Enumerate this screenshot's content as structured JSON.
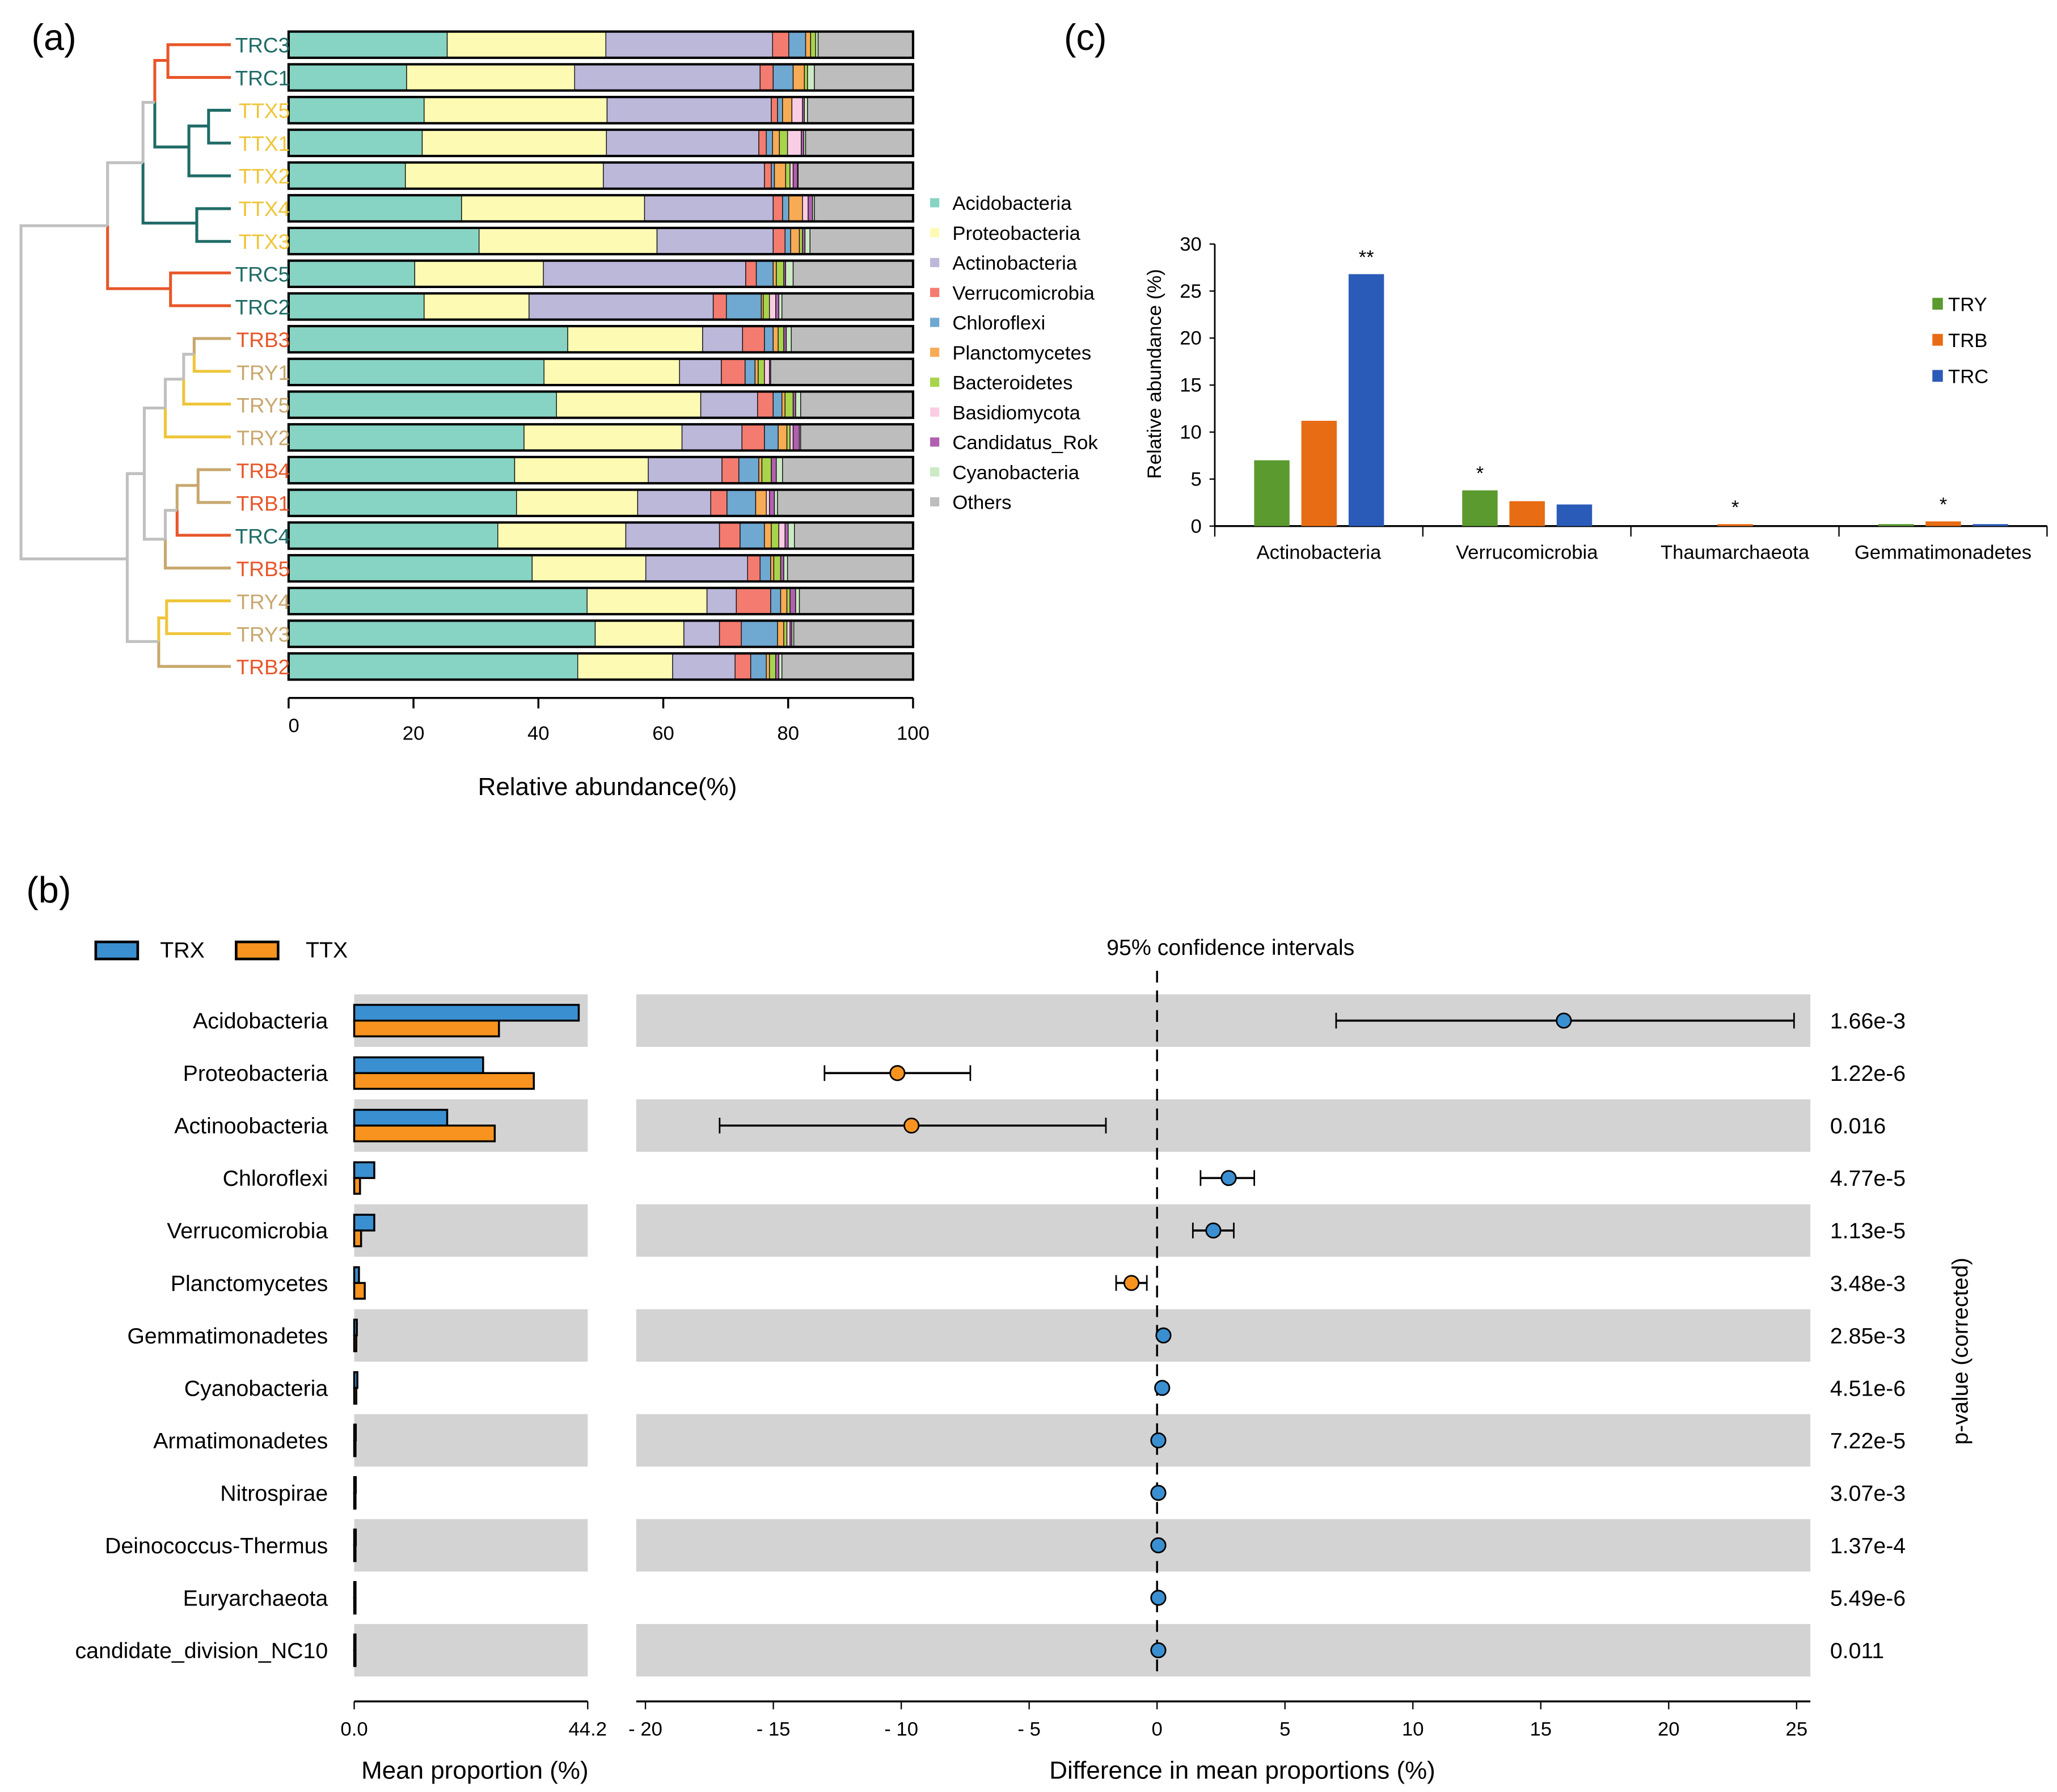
{
  "panel_labels": {
    "a": "(a)",
    "b": "(b)",
    "c": "(c)"
  },
  "chart_data": [
    {
      "panel": "a",
      "type": "bar",
      "orientation": "horizontal-stacked",
      "xlabel": "Relative abundance(%)",
      "xlim": [
        0,
        100
      ],
      "xticks": [
        "0",
        "20",
        "40",
        "60",
        "80",
        "100"
      ],
      "legend_position": "right",
      "categories": [
        "TRC3",
        "TRC1",
        "TTX5",
        "TTX1",
        "TTX2",
        "TTX4",
        "TTX3",
        "TRC5",
        "TRC2",
        "TRB3",
        "TRY1",
        "TRY5",
        "TRY2",
        "TRB4",
        "TRB1",
        "TRC4",
        "TRB5",
        "TRY4",
        "TRY3",
        "TRB2"
      ],
      "group_colors": {
        "TRC": "#1f6b66",
        "TTX": "#efc53a",
        "TRB": "#e8562a",
        "TRY": "#c8a86e"
      },
      "series": [
        {
          "name": "Acidobacteria",
          "color": "#87d3c4",
          "values": [
            25.4,
            18.9,
            21.7,
            21.4,
            18.7,
            27.7,
            30.5,
            20.2,
            21.7,
            44.7,
            40.9,
            42.9,
            37.7,
            36.2,
            36.5,
            33.5,
            39.0,
            47.8,
            49.1,
            46.3
          ]
        },
        {
          "name": "Proteobacteria",
          "color": "#fdfbb3",
          "values": [
            25.4,
            26.9,
            29.3,
            29.5,
            31.7,
            29.3,
            28.5,
            20.6,
            16.8,
            21.6,
            21.7,
            23.1,
            25.3,
            21.4,
            19.4,
            20.5,
            18.2,
            19.2,
            14.2,
            15.2
          ]
        },
        {
          "name": "Actinobacteria",
          "color": "#bcb8da",
          "values": [
            26.7,
            29.7,
            26.3,
            24.4,
            25.8,
            20.6,
            18.6,
            32.4,
            29.5,
            6.4,
            6.7,
            9.1,
            9.6,
            11.8,
            11.7,
            15.0,
            16.3,
            4.7,
            5.7,
            10.0
          ]
        },
        {
          "name": "Verrucomicrobia",
          "color": "#f47b6f",
          "values": [
            2.6,
            2.1,
            1.0,
            1.2,
            1.1,
            1.5,
            1.9,
            1.7,
            2.1,
            3.5,
            3.8,
            2.5,
            3.6,
            2.7,
            2.6,
            3.3,
            2.0,
            5.5,
            3.5,
            2.5
          ]
        },
        {
          "name": "Chloroflexi",
          "color": "#6fa8d0",
          "values": [
            2.7,
            3.2,
            0.8,
            1.0,
            0.5,
            1.0,
            0.9,
            2.7,
            5.6,
            1.4,
            1.6,
            1.4,
            2.2,
            3.2,
            4.6,
            3.9,
            1.7,
            1.6,
            5.8,
            2.5
          ]
        },
        {
          "name": "Planctomycetes",
          "color": "#f8ab55",
          "values": [
            0.8,
            1.8,
            1.5,
            1.1,
            1.8,
            2.2,
            1.4,
            0.5,
            0.3,
            0.8,
            0.5,
            0.5,
            1.4,
            0.5,
            1.7,
            1.1,
            0.5,
            1.0,
            1.0,
            0.5
          ]
        },
        {
          "name": "Bacteroidetes",
          "color": "#a8d44c",
          "values": [
            0.8,
            0.5,
            0,
            1.3,
            0.7,
            0,
            0.5,
            1.2,
            1.0,
            0.9,
            1.0,
            1.3,
            0.5,
            1.5,
            0,
            1.2,
            1.1,
            0.5,
            0.5,
            1.0
          ]
        },
        {
          "name": "Basidiomycota",
          "color": "#f9cde3",
          "values": [
            0,
            0,
            1.7,
            2.2,
            0.5,
            0.9,
            0,
            0,
            1.0,
            0,
            0.8,
            0,
            0.5,
            0,
            0.5,
            1.0,
            0,
            0,
            0.5,
            0
          ]
        },
        {
          "name": "Candidatus_Rok",
          "color": "#b160b0",
          "values": [
            0,
            0,
            0.3,
            0.4,
            0.7,
            0.7,
            0.4,
            0.3,
            0.5,
            0.4,
            0.2,
            0.4,
            1.0,
            0.8,
            0.8,
            0.5,
            0.5,
            0.9,
            0.3,
            0.5
          ]
        },
        {
          "name": "Cyanobacteria",
          "color": "#ccebc5",
          "values": [
            0.4,
            1.1,
            0.5,
            0.3,
            0.1,
            0.3,
            0.8,
            1.2,
            0.5,
            0.8,
            0,
            0.8,
            0.2,
            1.0,
            0.5,
            1.0,
            0.6,
            0.6,
            0.3,
            0.5
          ]
        },
        {
          "name": "Others",
          "color": "#bdbdbd",
          "values": [
            15.2,
            15.8,
            16.9,
            17.2,
            18.4,
            15.8,
            16.5,
            19.2,
            21.0,
            19.5,
            22.8,
            18.0,
            18.0,
            20.9,
            21.7,
            19.0,
            20.1,
            18.2,
            19.1,
            21.0
          ]
        }
      ]
    },
    {
      "panel": "b",
      "type": "bar",
      "orientation": "horizontal-grouped-with-ci",
      "legend": [
        {
          "name": "TRX",
          "color": "#3a8fd0"
        },
        {
          "name": "TTX",
          "color": "#f7931e"
        }
      ],
      "left_xlabel": "Mean proportion (%)",
      "left_xlim": [
        0,
        44.2
      ],
      "left_xticks": [
        "0.0",
        "44.2"
      ],
      "right_title": "95% confidence intervals",
      "right_xlabel": "Difference in mean proportions (%)",
      "right_xlim": [
        -20,
        25
      ],
      "right_xticks": [
        {
          "v": -20,
          "label": "- 20"
        },
        {
          "v": -15,
          "label": "- 15"
        },
        {
          "v": -10,
          "label": "- 10"
        },
        {
          "v": -5,
          "label": "- 5"
        },
        {
          "v": 0,
          "label": "0"
        },
        {
          "v": 5,
          "label": "5"
        },
        {
          "v": 10,
          "label": "10"
        },
        {
          "v": 15,
          "label": "15"
        },
        {
          "v": 20,
          "label": "20"
        },
        {
          "v": 25,
          "label": "25"
        }
      ],
      "pvalue_label": "p-value (corrected)",
      "rows": [
        {
          "name": "Acidobacteria",
          "trx": 42.5,
          "ttx": 27.4,
          "diff": 15.9,
          "ci": [
            7.0,
            24.9
          ],
          "p": "1.66e-3"
        },
        {
          "name": "Proteobacteria",
          "trx": 24.4,
          "ttx": 34.0,
          "diff": -10.15,
          "ci": [
            -13.0,
            -7.3
          ],
          "p": "1.22e-6"
        },
        {
          "name": "Actinoobacteria",
          "trx": 17.6,
          "ttx": 26.6,
          "diff": -9.6,
          "ci": [
            -17.1,
            -2.0
          ],
          "p": "0.016"
        },
        {
          "name": "Chloroflexi",
          "trx": 3.8,
          "ttx": 1.1,
          "diff": 2.8,
          "ci": [
            1.7,
            3.8
          ],
          "p": "4.77e-5"
        },
        {
          "name": "Verrucomicrobia",
          "trx": 3.8,
          "ttx": 1.3,
          "diff": 2.2,
          "ci": [
            1.4,
            3.0
          ],
          "p": "1.13e-5"
        },
        {
          "name": "Planctomycetes",
          "trx": 0.9,
          "ttx": 2.0,
          "diff": -1.0,
          "ci": [
            -1.6,
            -0.4
          ],
          "p": "3.48e-3"
        },
        {
          "name": "Gemmatimonadetes",
          "trx": 0.5,
          "ttx": 0.4,
          "diff": 0.25,
          "ci": [
            0.2,
            0.3
          ],
          "p": "2.85e-3"
        },
        {
          "name": "Cyanobacteria",
          "trx": 0.6,
          "ttx": 0.4,
          "diff": 0.2,
          "ci": [
            0.15,
            0.25
          ],
          "p": "4.51e-6"
        },
        {
          "name": "Armatimonadetes",
          "trx": 0.3,
          "ttx": 0.25,
          "diff": 0.05,
          "ci": [
            0.03,
            0.07
          ],
          "p": "7.22e-5"
        },
        {
          "name": "Nitrospirae",
          "trx": 0.3,
          "ttx": 0.2,
          "diff": 0.05,
          "ci": [
            0.03,
            0.07
          ],
          "p": "3.07e-3"
        },
        {
          "name": "Deinococcus-Thermus",
          "trx": 0.3,
          "ttx": 0.2,
          "diff": 0.05,
          "ci": [
            0.03,
            0.07
          ],
          "p": "1.37e-4"
        },
        {
          "name": "Euryarchaeota",
          "trx": 0.2,
          "ttx": 0.1,
          "diff": 0.05,
          "ci": [
            0.03,
            0.07
          ],
          "p": "5.49e-6"
        },
        {
          "name": "candidate_division_NC10",
          "trx": 0.2,
          "ttx": 0.1,
          "diff": 0.05,
          "ci": [
            0.03,
            0.07
          ],
          "p": "0.011"
        }
      ]
    },
    {
      "panel": "c",
      "type": "bar",
      "orientation": "vertical-grouped",
      "ylabel": "Relative abundance (%)",
      "ylim": [
        0,
        30
      ],
      "yticks": [
        "0",
        "5",
        "10",
        "15",
        "20",
        "25",
        "30"
      ],
      "legend_position": "right",
      "categories": [
        "Actinobacteria",
        "Verrucomicrobia",
        "Thaumarchaeota",
        "Gemmatimonadetes"
      ],
      "series": [
        {
          "name": "TRY",
          "color": "#5a9a2e",
          "values": [
            7.0,
            3.8,
            0.0,
            0.15
          ]
        },
        {
          "name": "TRB",
          "color": "#e86c14",
          "values": [
            11.2,
            2.65,
            0.19,
            0.5
          ]
        },
        {
          "name": "TRC",
          "color": "#2b5bb8",
          "values": [
            26.8,
            2.3,
            0.0,
            0.15
          ]
        }
      ],
      "significance": [
        {
          "category": "Actinobacteria",
          "series": "TRC",
          "mark": "**"
        },
        {
          "category": "Verrucomicrobia",
          "series": "TRY",
          "mark": "*"
        },
        {
          "category": "Thaumarchaeota",
          "series": "TRB",
          "mark": "*"
        },
        {
          "category": "Gemmatimonadetes",
          "series": "TRB",
          "mark": "*"
        }
      ]
    }
  ]
}
